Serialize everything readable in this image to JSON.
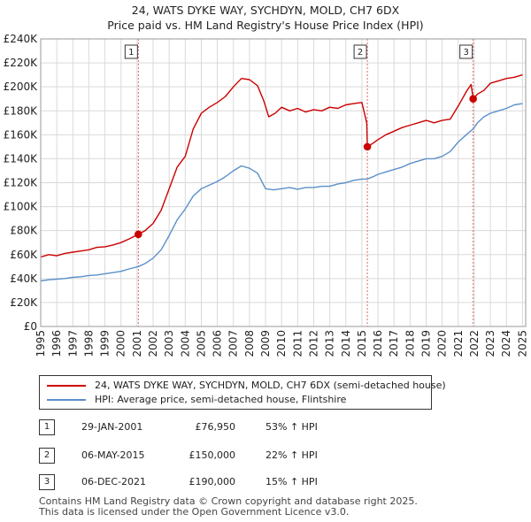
{
  "title": "24, WATS DYKE WAY, SYCHDYN, MOLD, CH7 6DX",
  "subtitle": "Price paid vs. HM Land Registry's House Price Index (HPI)",
  "chart_data": {
    "type": "line",
    "title": "24, WATS DYKE WAY, SYCHDYN, MOLD, CH7 6DX",
    "subtitle": "Price paid vs. HM Land Registry's House Price Index (HPI)",
    "xlabel": "",
    "ylabel": "",
    "xlim": [
      1995,
      2025.2
    ],
    "ylim": [
      0,
      240000
    ],
    "grid": true,
    "x_ticks": [
      1995,
      1996,
      1997,
      1998,
      1999,
      2000,
      2001,
      2002,
      2003,
      2004,
      2005,
      2006,
      2007,
      2008,
      2009,
      2010,
      2011,
      2012,
      2013,
      2014,
      2015,
      2016,
      2017,
      2018,
      2019,
      2020,
      2021,
      2022,
      2023,
      2024,
      2025
    ],
    "x_tick_labels": [
      "1995",
      "1996",
      "1997",
      "1998",
      "1999",
      "2000",
      "2001",
      "2002",
      "2003",
      "2004",
      "2005",
      "2006",
      "2007",
      "2008",
      "2009",
      "2010",
      "2011",
      "2012",
      "2013",
      "2014",
      "2015",
      "2016",
      "2017",
      "2018",
      "2019",
      "2020",
      "2021",
      "2022",
      "2023",
      "2024",
      "2025"
    ],
    "y_ticks": [
      0,
      20000,
      40000,
      60000,
      80000,
      100000,
      120000,
      140000,
      160000,
      180000,
      200000,
      220000,
      240000
    ],
    "y_tick_labels": [
      "£0",
      "£20K",
      "£40K",
      "£60K",
      "£80K",
      "£100K",
      "£120K",
      "£140K",
      "£160K",
      "£180K",
      "£200K",
      "£220K",
      "£240K"
    ],
    "series": [
      {
        "name": "24, WATS DYKE WAY, SYCHDYN, MOLD, CH7 6DX (semi-detached house)",
        "color": "#cc0000",
        "x": [
          1995.0,
          1995.5,
          1996.0,
          1996.5,
          1997.0,
          1997.5,
          1998.0,
          1998.5,
          1999.0,
          1999.5,
          2000.0,
          2000.5,
          2001.08,
          2001.5,
          2002.0,
          2002.5,
          2003.0,
          2003.5,
          2004.0,
          2004.5,
          2005.0,
          2005.5,
          2006.0,
          2006.5,
          2007.0,
          2007.5,
          2008.0,
          2008.5,
          2008.9,
          2009.2,
          2009.6,
          2010.0,
          2010.5,
          2011.0,
          2011.5,
          2012.0,
          2012.5,
          2013.0,
          2013.5,
          2014.0,
          2014.5,
          2015.0,
          2015.3,
          2015.34,
          2015.7,
          2016.0,
          2016.5,
          2017.0,
          2017.5,
          2018.0,
          2018.5,
          2019.0,
          2019.5,
          2020.0,
          2020.5,
          2021.0,
          2021.5,
          2021.8,
          2021.93,
          2022.2,
          2022.6,
          2023.0,
          2023.5,
          2024.0,
          2024.5,
          2025.0
        ],
        "y": [
          58000,
          60000,
          59000,
          61000,
          62000,
          63000,
          64000,
          66000,
          66500,
          68000,
          70000,
          73000,
          76950,
          80000,
          86000,
          97000,
          115000,
          133000,
          142000,
          165000,
          178000,
          183000,
          187000,
          192000,
          200000,
          207000,
          206000,
          201000,
          188000,
          175000,
          178000,
          183000,
          180000,
          182000,
          179000,
          181000,
          180000,
          183000,
          182000,
          185000,
          186000,
          187000,
          170000,
          150000,
          153000,
          156000,
          160000,
          163000,
          166000,
          168000,
          170000,
          172000,
          170000,
          172000,
          173000,
          184000,
          196000,
          202000,
          190000,
          194000,
          197000,
          203000,
          205000,
          207000,
          208000,
          210000
        ]
      },
      {
        "name": "HPI: Average price, semi-detached house, Flintshire",
        "color": "#5b8fc9",
        "x": [
          1995.0,
          1995.5,
          1996.0,
          1996.5,
          1997.0,
          1997.5,
          1998.0,
          1998.5,
          1999.0,
          1999.5,
          2000.0,
          2000.5,
          2001.08,
          2001.5,
          2002.0,
          2002.5,
          2003.0,
          2003.5,
          2004.0,
          2004.5,
          2005.0,
          2005.5,
          2006.0,
          2006.5,
          2007.0,
          2007.5,
          2008.0,
          2008.5,
          2009.0,
          2009.5,
          2010.0,
          2010.5,
          2011.0,
          2011.5,
          2012.0,
          2012.5,
          2013.0,
          2013.5,
          2014.0,
          2014.5,
          2015.0,
          2015.34,
          2015.7,
          2016.0,
          2016.5,
          2017.0,
          2017.5,
          2018.0,
          2018.5,
          2019.0,
          2019.5,
          2020.0,
          2020.5,
          2021.0,
          2021.5,
          2021.93,
          2022.2,
          2022.6,
          2023.0,
          2023.5,
          2024.0,
          2024.5,
          2025.0
        ],
        "y": [
          38000,
          39000,
          39500,
          40000,
          41000,
          41500,
          42500,
          43000,
          44000,
          45000,
          46000,
          48000,
          50000,
          52500,
          57000,
          64000,
          76000,
          89000,
          98000,
          109000,
          115000,
          118000,
          121000,
          125000,
          130000,
          134000,
          132000,
          128000,
          115000,
          114000,
          115000,
          116000,
          114500,
          116000,
          116000,
          117000,
          117000,
          119000,
          120000,
          122000,
          123000,
          123000,
          125000,
          127000,
          129000,
          131000,
          133000,
          136000,
          138000,
          140000,
          140000,
          142000,
          146000,
          154000,
          160000,
          165000,
          170000,
          175000,
          178000,
          180000,
          182000,
          185000,
          186000
        ]
      }
    ],
    "sales": [
      {
        "label": "1",
        "x": 2001.08,
        "value": 76950
      },
      {
        "label": "2",
        "x": 2015.34,
        "value": 150000
      },
      {
        "label": "3",
        "x": 2021.93,
        "value": 190000
      }
    ]
  },
  "legend": {
    "items": [
      {
        "label": "24, WATS DYKE WAY, SYCHDYN, MOLD, CH7 6DX (semi-detached house)",
        "color": "#cc0000"
      },
      {
        "label": "HPI: Average price, semi-detached house, Flintshire",
        "color": "#5b8fc9"
      }
    ]
  },
  "transactions": [
    {
      "num": "1",
      "date": "29-JAN-2001",
      "price": "£76,950",
      "pct": "53% ↑ HPI"
    },
    {
      "num": "2",
      "date": "06-MAY-2015",
      "price": "£150,000",
      "pct": "22% ↑ HPI"
    },
    {
      "num": "3",
      "date": "06-DEC-2021",
      "price": "£190,000",
      "pct": "15% ↑ HPI"
    }
  ],
  "footer": {
    "line1": "Contains HM Land Registry data © Crown copyright and database right 2025.",
    "line2": "This data is licensed under the Open Government Licence v3.0."
  }
}
